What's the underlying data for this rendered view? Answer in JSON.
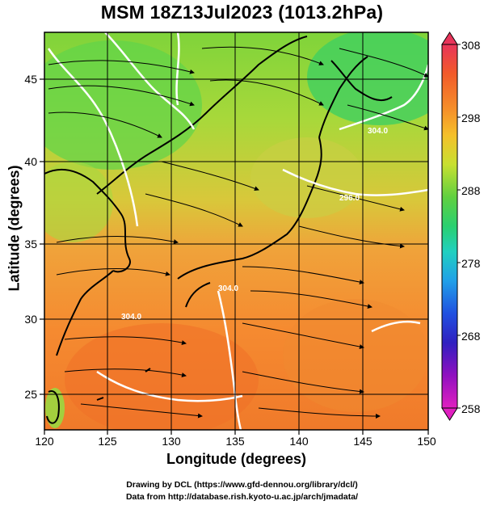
{
  "header": {
    "title": "MSM 18Z13Jul2023 (1013.2hPa)"
  },
  "axes": {
    "xlabel": "Longitude (degrees)",
    "ylabel": "Latitude  (degrees)",
    "x_ticks": [
      "120",
      "125",
      "130",
      "135",
      "140",
      "145",
      "150"
    ],
    "y_ticks": [
      "25",
      "30",
      "35",
      "40",
      "45"
    ]
  },
  "colorbar": {
    "labels": [
      "308",
      "298",
      "288",
      "278",
      "268",
      "258"
    ],
    "colors": [
      "#e8345a",
      "#f25a2a",
      "#f5902a",
      "#f5c02a",
      "#c8e030",
      "#60d040",
      "#2ad070",
      "#20d0c0",
      "#20a0e8",
      "#2050e0",
      "#3020c0",
      "#9010c0",
      "#e020c0"
    ]
  },
  "contour_labels": [
    "304.0",
    "304.0",
    "304.0",
    "296.0"
  ],
  "footer": {
    "line1": "Drawing by DCL (https://www.gfd-dennou.org/library/dcl/)",
    "line2": "Data from http://database.rish.kyoto-u.ac.jp/arch/jmadata/"
  }
}
